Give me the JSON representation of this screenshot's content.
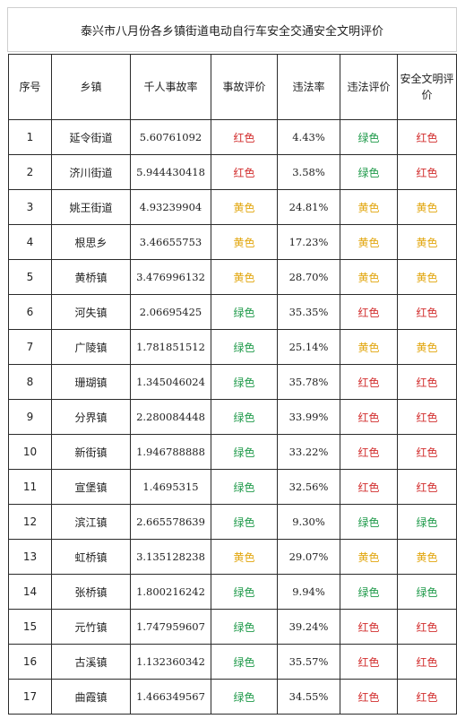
{
  "title": "泰兴市八月份各乡镇街道电动自行车安全交通安全文明评价",
  "headers": [
    "序号",
    "乡镇",
    "千人事故率",
    "事故评价",
    "违法率",
    "违法评价",
    "安全文明评价"
  ],
  "colors": {
    "红色": "#d22e2e",
    "绿色": "#1f9a4a",
    "黄色": "#e2a60e"
  },
  "rows": [
    {
      "no": "1",
      "town": "延令街道",
      "rate": "5.60761092",
      "acc": "红色",
      "vio": "4.43%",
      "vioEval": "绿色",
      "safety": "红色"
    },
    {
      "no": "2",
      "town": "济川街道",
      "rate": "5.944430418",
      "acc": "红色",
      "vio": "3.58%",
      "vioEval": "绿色",
      "safety": "红色"
    },
    {
      "no": "3",
      "town": "姚王街道",
      "rate": "4.93239904",
      "acc": "黄色",
      "vio": "24.81%",
      "vioEval": "黄色",
      "safety": "黄色"
    },
    {
      "no": "4",
      "town": "根思乡",
      "rate": "3.46655753",
      "acc": "黄色",
      "vio": "17.23%",
      "vioEval": "黄色",
      "safety": "黄色"
    },
    {
      "no": "5",
      "town": "黄桥镇",
      "rate": "3.476996132",
      "acc": "黄色",
      "vio": "28.70%",
      "vioEval": "黄色",
      "safety": "黄色"
    },
    {
      "no": "6",
      "town": "河失镇",
      "rate": "2.06695425",
      "acc": "绿色",
      "vio": "35.35%",
      "vioEval": "红色",
      "safety": "红色"
    },
    {
      "no": "7",
      "town": "广陵镇",
      "rate": "1.781851512",
      "acc": "绿色",
      "vio": "25.14%",
      "vioEval": "黄色",
      "safety": "黄色"
    },
    {
      "no": "8",
      "town": "珊瑚镇",
      "rate": "1.345046024",
      "acc": "绿色",
      "vio": "35.78%",
      "vioEval": "红色",
      "safety": "红色"
    },
    {
      "no": "9",
      "town": "分界镇",
      "rate": "2.280084448",
      "acc": "绿色",
      "vio": "33.99%",
      "vioEval": "红色",
      "safety": "红色"
    },
    {
      "no": "10",
      "town": "新街镇",
      "rate": "1.946788888",
      "acc": "绿色",
      "vio": "33.22%",
      "vioEval": "红色",
      "safety": "红色"
    },
    {
      "no": "11",
      "town": "宣堡镇",
      "rate": "1.4695315",
      "acc": "绿色",
      "vio": "32.56%",
      "vioEval": "红色",
      "safety": "红色"
    },
    {
      "no": "12",
      "town": "滨江镇",
      "rate": "2.665578639",
      "acc": "绿色",
      "vio": "9.30%",
      "vioEval": "绿色",
      "safety": "绿色"
    },
    {
      "no": "13",
      "town": "虹桥镇",
      "rate": "3.135128238",
      "acc": "黄色",
      "vio": "29.07%",
      "vioEval": "黄色",
      "safety": "黄色"
    },
    {
      "no": "14",
      "town": "张桥镇",
      "rate": "1.800216242",
      "acc": "绿色",
      "vio": "9.94%",
      "vioEval": "绿色",
      "safety": "绿色"
    },
    {
      "no": "15",
      "town": "元竹镇",
      "rate": "1.747959607",
      "acc": "绿色",
      "vio": "39.24%",
      "vioEval": "红色",
      "safety": "红色"
    },
    {
      "no": "16",
      "town": "古溪镇",
      "rate": "1.132360342",
      "acc": "绿色",
      "vio": "35.57%",
      "vioEval": "红色",
      "safety": "红色"
    },
    {
      "no": "17",
      "town": "曲霞镇",
      "rate": "1.466349567",
      "acc": "绿色",
      "vio": "34.55%",
      "vioEval": "红色",
      "safety": "红色"
    }
  ]
}
